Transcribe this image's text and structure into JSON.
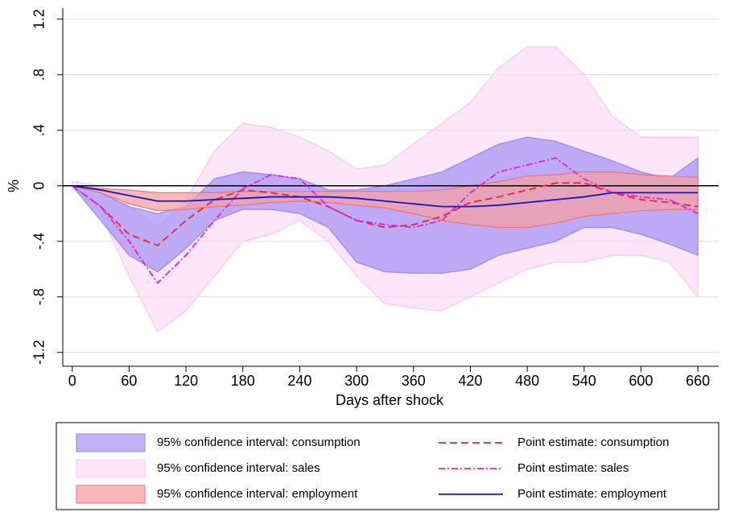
{
  "chart_data": {
    "type": "band-line",
    "x_label": "Days after shock",
    "y_label": "%",
    "x": [
      0,
      30,
      60,
      90,
      120,
      150,
      180,
      210,
      240,
      270,
      300,
      330,
      360,
      390,
      420,
      450,
      480,
      510,
      540,
      570,
      600,
      630,
      660
    ],
    "xlim": [
      -10,
      682
    ],
    "ylim": [
      -1.3,
      1.28
    ],
    "xticks": [
      0,
      60,
      120,
      180,
      240,
      300,
      360,
      420,
      480,
      540,
      600,
      660
    ],
    "yticks": [
      {
        "value": -1.2,
        "label": "-1.2"
      },
      {
        "value": -0.8,
        "label": "-.8"
      },
      {
        "value": -0.4,
        "label": "-.4"
      },
      0,
      {
        "value": 0.4,
        "label": ".4"
      },
      {
        "value": 0.8,
        "label": ".8"
      },
      {
        "value": 1.2,
        "label": "1.2"
      }
    ],
    "grid": true,
    "hline": 0,
    "bands": [
      {
        "name": "95% confidence interval: sales",
        "color": "#fcdcf8",
        "stroke": "#f8c8f2",
        "lower": [
          0,
          -0.2,
          -0.65,
          -1.05,
          -0.9,
          -0.65,
          -0.4,
          -0.35,
          -0.25,
          -0.4,
          -0.65,
          -0.85,
          -0.88,
          -0.9,
          -0.8,
          -0.7,
          -0.6,
          -0.55,
          -0.55,
          -0.5,
          -0.5,
          -0.55,
          -0.8
        ],
        "upper": [
          0.03,
          0,
          -0.15,
          -0.3,
          -0.1,
          0.25,
          0.45,
          0.42,
          0.35,
          0.25,
          0.12,
          0.15,
          0.3,
          0.45,
          0.6,
          0.85,
          1.0,
          1.0,
          0.8,
          0.5,
          0.35,
          0.35,
          0.35
        ]
      },
      {
        "name": "95% confidence interval: consumption",
        "color": "#a996f5",
        "stroke": "#9a86ee",
        "lower": [
          0,
          -0.25,
          -0.5,
          -0.62,
          -0.45,
          -0.25,
          -0.17,
          -0.17,
          -0.2,
          -0.3,
          -0.55,
          -0.62,
          -0.63,
          -0.63,
          -0.6,
          -0.5,
          -0.45,
          -0.4,
          -0.3,
          -0.3,
          -0.35,
          -0.42,
          -0.5
        ],
        "upper": [
          0,
          -0.05,
          -0.15,
          -0.2,
          -0.15,
          0.05,
          0.1,
          0.08,
          0.05,
          -0.03,
          -0.03,
          0,
          0.05,
          0.1,
          0.2,
          0.3,
          0.35,
          0.32,
          0.25,
          0.18,
          0.1,
          0.05,
          0.2
        ]
      },
      {
        "name": "95% confidence interval: employment",
        "color": "#f4a0a4",
        "stroke": "#ee7078",
        "lower": [
          0,
          -0.05,
          -0.13,
          -0.18,
          -0.17,
          -0.15,
          -0.14,
          -0.12,
          -0.11,
          -0.12,
          -0.14,
          -0.16,
          -0.2,
          -0.25,
          -0.28,
          -0.3,
          -0.3,
          -0.27,
          -0.22,
          -0.2,
          -0.18,
          -0.17,
          -0.17
        ],
        "upper": [
          0,
          -0.02,
          -0.03,
          -0.05,
          -0.05,
          -0.05,
          -0.04,
          -0.04,
          -0.04,
          -0.04,
          -0.04,
          -0.04,
          -0.04,
          -0.03,
          0,
          0.03,
          0.07,
          0.08,
          0.1,
          0.1,
          0.08,
          0.07,
          0.06
        ]
      }
    ],
    "series": [
      {
        "name": "Point estimate: consumption",
        "color": "#e8262b",
        "dash": "9,5",
        "values": [
          0,
          -0.15,
          -0.35,
          -0.43,
          -0.25,
          -0.1,
          -0.03,
          -0.05,
          -0.08,
          -0.15,
          -0.25,
          -0.3,
          -0.28,
          -0.22,
          -0.12,
          -0.08,
          -0.03,
          0.02,
          0.02,
          -0.05,
          -0.1,
          -0.12,
          -0.15
        ]
      },
      {
        "name": "Point estimate: sales",
        "color": "#e01ee0",
        "dash": "8,3,2,3",
        "values": [
          0,
          -0.15,
          -0.4,
          -0.7,
          -0.5,
          -0.25,
          -0.02,
          0.08,
          0.05,
          -0.15,
          -0.25,
          -0.28,
          -0.3,
          -0.25,
          -0.05,
          0.1,
          0.15,
          0.2,
          0.05,
          -0.05,
          -0.08,
          -0.1,
          -0.2
        ]
      },
      {
        "name": "Point estimate: employment",
        "color": "#1515c8",
        "dash": "none",
        "values": [
          0,
          -0.03,
          -0.07,
          -0.11,
          -0.11,
          -0.1,
          -0.09,
          -0.08,
          -0.08,
          -0.08,
          -0.09,
          -0.11,
          -0.13,
          -0.15,
          -0.15,
          -0.14,
          -0.12,
          -0.1,
          -0.08,
          -0.05,
          -0.05,
          -0.05,
          -0.05
        ]
      }
    ]
  }
}
